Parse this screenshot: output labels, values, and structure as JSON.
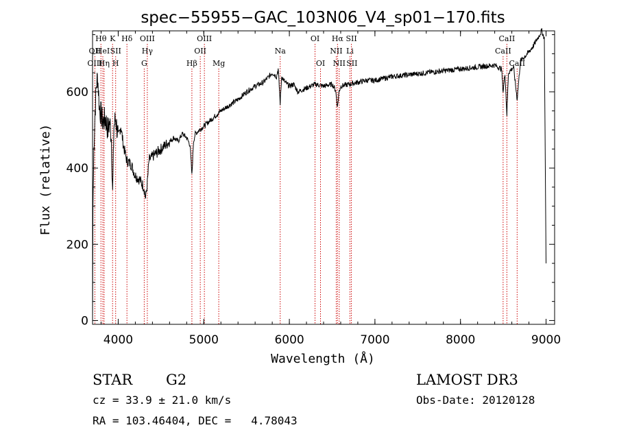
{
  "chart_data": {
    "type": "line",
    "title": "spec−55955−GAC_103N06_V4_sp01−170.fits",
    "xlabel": "Wavelength (Å)",
    "ylabel": "Flux (relative)",
    "xlim": [
      3700,
      9100
    ],
    "ylim": [
      -10,
      760
    ],
    "x_ticks": [
      4000,
      5000,
      6000,
      7000,
      8000,
      9000
    ],
    "y_ticks": [
      0,
      200,
      400,
      600
    ],
    "grid": false,
    "colors": {
      "spectrum": "#000000",
      "lines": "#cc0000",
      "axes": "#000000"
    },
    "series": [
      {
        "x": [
          3700,
          3705,
          3715,
          3730,
          3745,
          3760,
          3780,
          3800,
          3820,
          3850,
          3880,
          3900,
          3920,
          3935,
          3950,
          3970,
          4000,
          4030,
          4060,
          4100,
          4150,
          4200,
          4250,
          4300,
          4320,
          4340,
          4360,
          4400,
          4450,
          4500,
          4550,
          4600,
          4650,
          4700,
          4750,
          4800,
          4840,
          4861,
          4880,
          4900,
          4950,
          5000,
          5100,
          5200,
          5300,
          5400,
          5500,
          5600,
          5700,
          5800,
          5850,
          5870,
          5893,
          5910,
          5950,
          6000,
          6050,
          6100,
          6200,
          6300,
          6400,
          6500,
          6540,
          6563,
          6580,
          6600,
          6700,
          6800,
          6900,
          7000,
          7200,
          7400,
          7600,
          7800,
          8000,
          8200,
          8400,
          8480,
          8498,
          8520,
          8542,
          8560,
          8620,
          8662,
          8700,
          8800,
          8850,
          8900,
          8950,
          8980,
          9000
        ],
        "y": [
          0,
          300,
          450,
          550,
          620,
          640,
          560,
          540,
          520,
          530,
          500,
          520,
          480,
          330,
          510,
          530,
          480,
          510,
          460,
          420,
          410,
          380,
          370,
          350,
          320,
          360,
          420,
          430,
          440,
          450,
          460,
          470,
          480,
          470,
          490,
          480,
          460,
          380,
          470,
          490,
          500,
          510,
          530,
          550,
          565,
          580,
          600,
          615,
          625,
          650,
          640,
          660,
          570,
          640,
          625,
          615,
          620,
          600,
          610,
          620,
          615,
          620,
          605,
          560,
          600,
          615,
          620,
          625,
          630,
          630,
          640,
          645,
          650,
          655,
          660,
          665,
          670,
          660,
          600,
          650,
          540,
          650,
          665,
          580,
          680,
          705,
          720,
          740,
          760,
          740,
          150
        ]
      }
    ],
    "line_markers": [
      {
        "label": "Hθ",
        "x": 3798,
        "row": 0
      },
      {
        "label": "OII",
        "x": 3727,
        "row": 1
      },
      {
        "label": "OIII",
        "x": 3727,
        "row": 2
      },
      {
        "label": "HeI",
        "x": 3820,
        "row": 1
      },
      {
        "label": "Hη",
        "x": 3835,
        "row": 2
      },
      {
        "label": "K",
        "x": 3934,
        "row": 0
      },
      {
        "label": "SII",
        "x": 3970,
        "row": 1
      },
      {
        "label": "H",
        "x": 3970,
        "row": 2
      },
      {
        "label": "Hδ",
        "x": 4102,
        "row": 0
      },
      {
        "label": "OIII",
        "x": 4340,
        "row": 0
      },
      {
        "label": "Hγ",
        "x": 4340,
        "row": 1
      },
      {
        "label": "G",
        "x": 4304,
        "row": 2
      },
      {
        "label": "Hβ",
        "x": 4861,
        "row": 2
      },
      {
        "label": "OIII",
        "x": 5007,
        "row": 0
      },
      {
        "label": "OII",
        "x": 4959,
        "row": 1
      },
      {
        "label": "Mg",
        "x": 5175,
        "row": 2
      },
      {
        "label": "Na",
        "x": 5893,
        "row": 1
      },
      {
        "label": "OI",
        "x": 6300,
        "row": 0
      },
      {
        "label": "OI",
        "x": 6364,
        "row": 2
      },
      {
        "label": "Hα",
        "x": 6563,
        "row": 0
      },
      {
        "label": "SII",
        "x": 6725,
        "row": 0
      },
      {
        "label": "NII",
        "x": 6548,
        "row": 1
      },
      {
        "label": "Li",
        "x": 6708,
        "row": 1
      },
      {
        "label": "NII",
        "x": 6583,
        "row": 2
      },
      {
        "label": "SII",
        "x": 6731,
        "row": 2
      },
      {
        "label": "CaII",
        "x": 8542,
        "row": 0
      },
      {
        "label": "CaII",
        "x": 8498,
        "row": 1
      },
      {
        "label": "CaII",
        "x": 8662,
        "row": 2
      }
    ]
  },
  "info": {
    "object_class": "STAR",
    "subclass": "G2",
    "survey": "LAMOST DR3",
    "cz": "cz = 33.9 ± 21.0 km/s",
    "obs_date": "Obs-Date: 20120128",
    "radec": "RA = 103.46404, DEC =   4.78043"
  }
}
